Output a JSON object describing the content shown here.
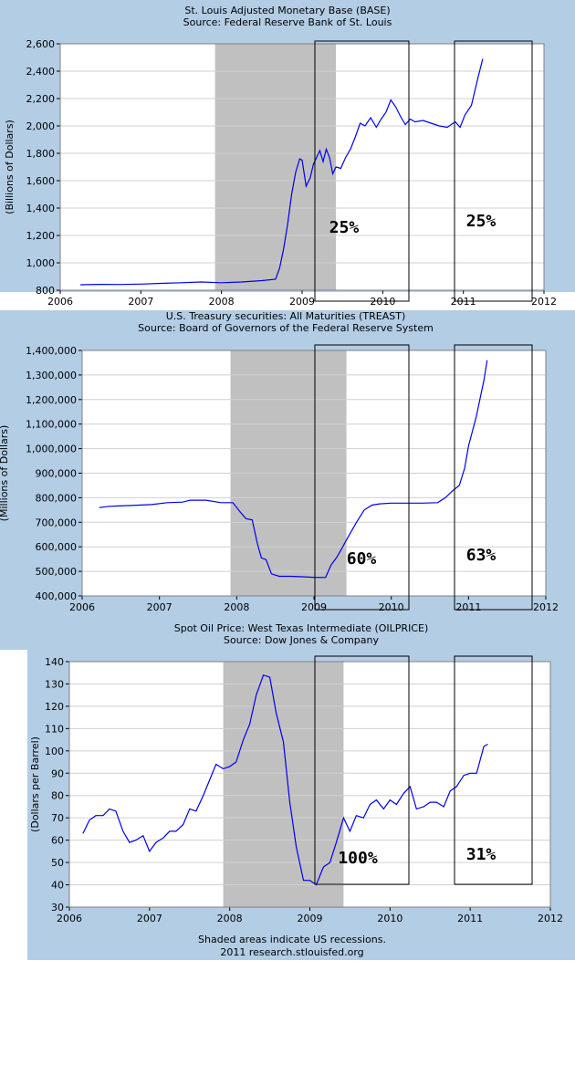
{
  "colors": {
    "panel": "#b3cde5",
    "plot_bg": "#ffffff",
    "recession": "#c0c0c0",
    "line": "#0000ee",
    "grid": "#d0d0d0",
    "annotation_box": "#000000"
  },
  "footer": {
    "note": "Shaded areas indicate US recessions.",
    "credit": "2011 research.stlouisfed.org"
  },
  "chart_data": [
    {
      "type": "line",
      "title": "St. Louis Adjusted Monetary Base (BASE)",
      "subtitle": "Source: Federal Reserve Bank of St. Louis",
      "xlabel": "",
      "ylabel": "(Billions of Dollars)",
      "xlim": [
        2006,
        2012
      ],
      "ylim": [
        800,
        2600
      ],
      "xticks": [
        2006,
        2007,
        2008,
        2009,
        2010,
        2011,
        2012
      ],
      "yticks": [
        800,
        1000,
        1200,
        1400,
        1600,
        1800,
        2000,
        2200,
        2400,
        2600
      ],
      "ytick_labels": [
        "800",
        "1,000",
        "1,200",
        "1,400",
        "1,600",
        "1,800",
        "2,000",
        "2,200",
        "2,400",
        "2,600"
      ],
      "recession": [
        2007.92,
        2009.42
      ],
      "series": [
        {
          "name": "BASE",
          "x": [
            2006.25,
            2006.5,
            2006.75,
            2007.0,
            2007.25,
            2007.5,
            2007.75,
            2008.0,
            2008.25,
            2008.5,
            2008.67,
            2008.72,
            2008.77,
            2008.82,
            2008.87,
            2008.92,
            2008.97,
            2009.0,
            2009.05,
            2009.1,
            2009.14,
            2009.18,
            2009.22,
            2009.26,
            2009.3,
            2009.34,
            2009.38,
            2009.42,
            2009.48,
            2009.54,
            2009.6,
            2009.66,
            2009.72,
            2009.78,
            2009.85,
            2009.92,
            2009.98,
            2010.04,
            2010.1,
            2010.16,
            2010.22,
            2010.28,
            2010.34,
            2010.4,
            2010.5,
            2010.6,
            2010.7,
            2010.8,
            2010.9,
            2010.96,
            2011.02,
            2011.1,
            2011.18,
            2011.24
          ],
          "values": [
            840,
            843,
            842,
            845,
            850,
            855,
            860,
            855,
            860,
            870,
            880,
            960,
            1100,
            1280,
            1500,
            1660,
            1760,
            1750,
            1560,
            1620,
            1720,
            1770,
            1820,
            1740,
            1830,
            1770,
            1650,
            1700,
            1690,
            1770,
            1830,
            1920,
            2020,
            2000,
            2060,
            1990,
            2050,
            2100,
            2190,
            2140,
            2070,
            2010,
            2050,
            2030,
            2040,
            2020,
            2000,
            1990,
            2030,
            1990,
            2080,
            2150,
            2350,
            2490
          ]
        }
      ],
      "annotations": [
        {
          "text": "25%",
          "x0": 2009.17,
          "x1": 2010.35,
          "y0": 800,
          "y1": 2600
        },
        {
          "text": "25%",
          "x0": 2010.88,
          "x1": 2011.85,
          "y0": 800,
          "y1": 2600
        }
      ]
    },
    {
      "type": "line",
      "title": "U.S. Treasury securities: All Maturities (TREAST)",
      "subtitle": "Source: Board of Governors of the Federal Reserve System",
      "xlabel": "",
      "ylabel": "(Millions of Dollars)",
      "xlim": [
        2006,
        2012
      ],
      "ylim": [
        400000,
        1400000
      ],
      "xticks": [
        2006,
        2007,
        2008,
        2009,
        2010,
        2011,
        2012
      ],
      "yticks": [
        400000,
        500000,
        600000,
        700000,
        800000,
        900000,
        1000000,
        1100000,
        1200000,
        1300000,
        1400000
      ],
      "ytick_labels": [
        "400,000",
        "500,000",
        "600,000",
        "700,000",
        "800,000",
        "900,000",
        "1,000,000",
        "1,100,000",
        "1,200,000",
        "1,300,000",
        "1,400,000"
      ],
      "recession": [
        2007.92,
        2009.42
      ],
      "series": [
        {
          "name": "TREAST",
          "x": [
            2006.22,
            2006.35,
            2006.6,
            2006.9,
            2007.1,
            2007.3,
            2007.4,
            2007.6,
            2007.8,
            2007.95,
            2008.05,
            2008.12,
            2008.2,
            2008.27,
            2008.32,
            2008.38,
            2008.45,
            2008.55,
            2008.7,
            2008.85,
            2009.0,
            2009.15,
            2009.22,
            2009.3,
            2009.38,
            2009.46,
            2009.55,
            2009.65,
            2009.75,
            2009.85,
            2010.0,
            2010.2,
            2010.4,
            2010.6,
            2010.7,
            2010.8,
            2010.88,
            2010.95,
            2011.0,
            2011.1,
            2011.2,
            2011.24
          ],
          "values": [
            760000,
            765000,
            768000,
            772000,
            780000,
            782000,
            790000,
            790000,
            780000,
            780000,
            740000,
            715000,
            710000,
            610000,
            555000,
            548000,
            490000,
            480000,
            480000,
            478000,
            476000,
            475000,
            525000,
            560000,
            605000,
            650000,
            700000,
            750000,
            770000,
            775000,
            778000,
            778000,
            778000,
            780000,
            800000,
            830000,
            850000,
            920000,
            1010000,
            1130000,
            1280000,
            1360000
          ]
        }
      ],
      "annotations": [
        {
          "text": "60%",
          "x0": 2009.17,
          "x1": 2010.35,
          "y0": 400000,
          "y1": 1400000
        },
        {
          "text": "63%",
          "x0": 2010.88,
          "x1": 2011.85,
          "y0": 400000,
          "y1": 1400000
        }
      ]
    },
    {
      "type": "line",
      "title": "Spot Oil Price: West Texas Intermediate (OILPRICE)",
      "subtitle": "Source: Dow Jones & Company",
      "xlabel": "",
      "ylabel": "(Dollars per Barrel)",
      "xlim": [
        2006,
        2012
      ],
      "ylim": [
        30,
        140
      ],
      "xticks": [
        2006,
        2007,
        2008,
        2009,
        2010,
        2011,
        2012
      ],
      "yticks": [
        30,
        40,
        50,
        60,
        70,
        80,
        90,
        100,
        110,
        120,
        130,
        140
      ],
      "ytick_labels": [
        "30",
        "40",
        "50",
        "60",
        "70",
        "80",
        "90",
        "100",
        "110",
        "120",
        "130",
        "140"
      ],
      "recession": [
        2007.92,
        2009.42
      ],
      "series": [
        {
          "name": "OILPRICE",
          "x": [
            2006.17,
            2006.25,
            2006.33,
            2006.42,
            2006.5,
            2006.58,
            2006.67,
            2006.75,
            2006.83,
            2006.92,
            2007.0,
            2007.08,
            2007.17,
            2007.25,
            2007.33,
            2007.42,
            2007.5,
            2007.58,
            2007.67,
            2007.75,
            2007.83,
            2007.92,
            2008.0,
            2008.08,
            2008.17,
            2008.25,
            2008.33,
            2008.42,
            2008.5,
            2008.58,
            2008.67,
            2008.75,
            2008.83,
            2008.92,
            2009.0,
            2009.08,
            2009.17,
            2009.25,
            2009.33,
            2009.42,
            2009.5,
            2009.58,
            2009.67,
            2009.75,
            2009.83,
            2009.92,
            2010.0,
            2010.08,
            2010.17,
            2010.25,
            2010.33,
            2010.42,
            2010.5,
            2010.58,
            2010.67,
            2010.75,
            2010.83,
            2010.92,
            2011.0,
            2011.08,
            2011.17,
            2011.22
          ],
          "values": [
            63,
            69,
            71,
            71,
            74,
            73,
            64,
            59,
            60,
            62,
            55,
            59,
            61,
            64,
            64,
            67,
            74,
            73,
            80,
            87,
            94,
            92,
            93,
            95,
            105,
            112,
            125,
            134,
            133,
            117,
            104,
            77,
            57,
            42,
            42,
            40,
            48,
            50,
            59,
            70,
            64,
            71,
            70,
            76,
            78,
            74,
            78,
            76,
            81,
            84,
            74,
            75,
            77,
            77,
            75,
            82,
            84,
            89,
            90,
            90,
            102,
            103
          ]
        }
      ],
      "annotations": [
        {
          "text": "100%",
          "x0": 2009.07,
          "x1": 2010.23,
          "y0": 40,
          "y1": 140
        },
        {
          "text": "31%",
          "x0": 2010.83,
          "x1": 2011.82,
          "y0": 40,
          "y1": 140
        }
      ]
    }
  ]
}
